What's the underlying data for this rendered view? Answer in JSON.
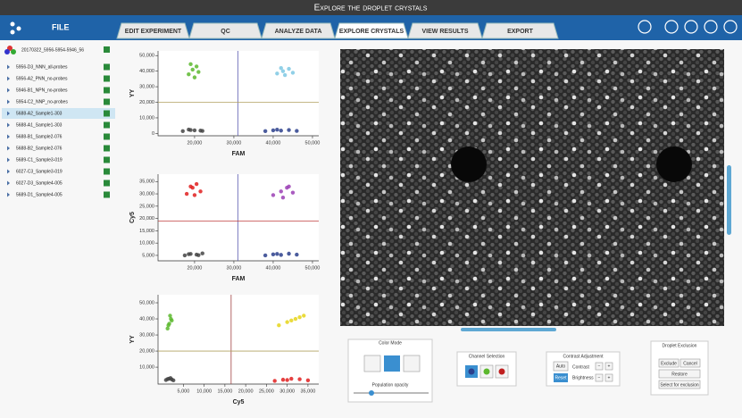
{
  "window_title": "Explore the droplet crystals",
  "menu": "FILE",
  "tabs": [
    "EDIT EXPERIMENT",
    "QC",
    "ANALYZE DATA",
    "EXPLORE CRYSTALS",
    "VIEW RESULTS",
    "EXPORT"
  ],
  "experiment": "20170322_5956-5954-5946_56",
  "samples": [
    "5956-D3_NNN_all-probes",
    "5956-A2_PNN_no-probes",
    "5946-B1_NPN_no-probes",
    "5954-C2_NNP_no-probes",
    "5688-A2_Sample1-303",
    "5688-A1_Sample1-303",
    "5688-B1_Sample2-076",
    "5688-B2_Sample2-076",
    "5689-C1_Sample3-019",
    "6027-C3_Sample3-019",
    "6027-D3_Sample4-005",
    "5689-D1_Sample4-005"
  ],
  "chart_data": [
    {
      "type": "scatter",
      "x_label": "FAM",
      "y_label": "YY",
      "xlim": [
        10700,
        51600
      ],
      "ylim": [
        -1500,
        53000
      ],
      "xticks": [
        {
          "value": 20000,
          "label": "20,000"
        },
        {
          "value": 30000,
          "label": "30,000"
        },
        {
          "value": 40000,
          "label": "40,000"
        },
        {
          "value": 50000,
          "label": "50,000"
        }
      ],
      "yticks": [
        0,
        {
          "value": 10000,
          "label": "10,000"
        },
        {
          "value": 20000,
          "label": "20,000"
        },
        {
          "value": 30000,
          "label": "30,000"
        },
        {
          "value": 40000,
          "label": "40,000"
        },
        {
          "value": 50000,
          "label": "50,000"
        }
      ],
      "thresholds": {
        "x": 31000,
        "y": 20000,
        "x_color": "#5a5ab0",
        "y_color": "#b0a060"
      },
      "series": [
        {
          "color": "#5cb82e",
          "x": [
            18500,
            19500,
            20500,
            21000,
            19000,
            20000
          ],
          "values": [
            38000,
            41000,
            43000,
            39500,
            44500,
            36000
          ]
        },
        {
          "color": "#7ec8e3",
          "x": [
            41000,
            42500,
            44000,
            45000,
            43000,
            42000
          ],
          "values": [
            38500,
            40000,
            41500,
            39000,
            37500,
            42000
          ]
        },
        {
          "color": "#444444",
          "x": [
            17000,
            18500,
            20000,
            21500,
            19000,
            22000
          ],
          "values": [
            1500,
            2500,
            2000,
            1800,
            2200,
            1600
          ]
        },
        {
          "color": "#2b3f8c",
          "x": [
            38000,
            40000,
            42000,
            44000,
            46000,
            41000
          ],
          "values": [
            1500,
            2000,
            1800,
            2200,
            1600,
            2400
          ]
        }
      ]
    },
    {
      "type": "scatter",
      "x_label": "FAM",
      "y_label": "Cy5",
      "xlim": [
        10700,
        51600
      ],
      "ylim": [
        2800,
        38000
      ],
      "xticks": [
        {
          "value": 20000,
          "label": "20,000"
        },
        {
          "value": 30000,
          "label": "30,000"
        },
        {
          "value": 40000,
          "label": "40,000"
        },
        {
          "value": 50000,
          "label": "50,000"
        }
      ],
      "yticks": [
        {
          "value": 5000,
          "label": "5,000"
        },
        {
          "value": 10000,
          "label": "10,000"
        },
        {
          "value": 15000,
          "label": "15,000"
        },
        {
          "value": 20000,
          "label": "20,000"
        },
        {
          "value": 25000,
          "label": "25,000"
        },
        {
          "value": 30000,
          "label": "30,000"
        },
        {
          "value": 35000,
          "label": "35,000"
        }
      ],
      "thresholds": {
        "x": 31000,
        "y": 19000,
        "x_color": "#5a5ab0",
        "y_color": "#c04040"
      },
      "series": [
        {
          "color": "#e02020",
          "x": [
            18000,
            19500,
            20500,
            21500,
            19000,
            20000
          ],
          "values": [
            30000,
            32500,
            34000,
            31000,
            33000,
            29500
          ]
        },
        {
          "color": "#9b3fb5",
          "x": [
            40000,
            42000,
            43500,
            45000,
            42500,
            44000
          ],
          "values": [
            29500,
            31000,
            32500,
            30500,
            28500,
            33000
          ]
        },
        {
          "color": "#444444",
          "x": [
            17500,
            19000,
            20500,
            22000,
            18500,
            21000
          ],
          "values": [
            5000,
            5600,
            5300,
            5800,
            5500,
            5100
          ]
        },
        {
          "color": "#2b3f8c",
          "x": [
            38000,
            40000,
            42000,
            44000,
            46000,
            41000
          ],
          "values": [
            5000,
            5400,
            5200,
            5700,
            5300,
            5600
          ]
        }
      ]
    },
    {
      "type": "scatter",
      "x_label": "Cy5",
      "y_label": "YY",
      "xlim": [
        -1100,
        37600
      ],
      "ylim": [
        -500,
        55000
      ],
      "xticks": [
        {
          "value": 5000,
          "label": "5,000"
        },
        {
          "value": 10000,
          "label": "10,000"
        },
        {
          "value": 15000,
          "label": "15,000"
        },
        {
          "value": 20000,
          "label": "20,000"
        },
        {
          "value": 25000,
          "label": "25,000"
        },
        {
          "value": 30000,
          "label": "30,000"
        },
        {
          "value": 35000,
          "label": "35,000"
        }
      ],
      "yticks": [
        {
          "value": 10000,
          "label": "10,000"
        },
        {
          "value": 20000,
          "label": "20,000"
        },
        {
          "value": 30000,
          "label": "30,000"
        },
        {
          "value": 40000,
          "label": "40,000"
        },
        {
          "value": 50000,
          "label": "50,000"
        }
      ],
      "thresholds": {
        "x": 16500,
        "y": 20000,
        "x_color": "#a04040",
        "y_color": "#b0a060"
      },
      "series": [
        {
          "color": "#5cb82e",
          "x": [
            1200,
            1600,
            2000,
            1800,
            1400,
            2200
          ],
          "values": [
            34000,
            37000,
            40000,
            42000,
            36000,
            39000
          ]
        },
        {
          "color": "#e6d51a",
          "x": [
            28000,
            30000,
            32000,
            34000,
            31000,
            33000
          ],
          "values": [
            36000,
            38000,
            40000,
            42000,
            39000,
            41000
          ]
        },
        {
          "color": "#444444",
          "x": [
            800,
            1500,
            2200,
            1900,
            1200,
            2600
          ],
          "values": [
            2000,
            2800,
            2400,
            3200,
            2600,
            1800
          ]
        },
        {
          "color": "#e02020",
          "x": [
            27000,
            29000,
            31000,
            33000,
            35000,
            30000
          ],
          "values": [
            1500,
            2200,
            2800,
            2500,
            1800,
            2000
          ]
        }
      ]
    }
  ],
  "controls": {
    "color_mode": {
      "title": "Color Mode",
      "opacity_label": "Population opacity"
    },
    "channel_selection": {
      "title": "Channel Selection"
    },
    "contrast": {
      "title": "Contrast Adjustment",
      "auto": "Auto",
      "reset": "Reset",
      "contrast": "Contrast",
      "brightness": "Brightness",
      "minus": "−",
      "plus": "+"
    },
    "exclusion": {
      "title": "Droplet Exclusion",
      "exclude": "Exclude",
      "cancel": "Cancel",
      "restore": "Restore",
      "select": "Select for exclusion"
    }
  }
}
